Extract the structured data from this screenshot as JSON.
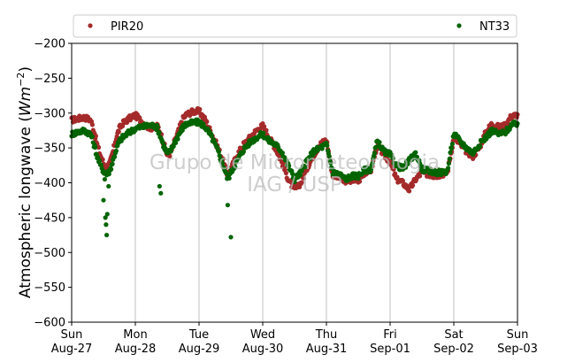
{
  "chart_data": {
    "type": "scatter",
    "ylabel_main": "Atmospheric longwave (",
    "ylabel_unit": "Wm",
    "ylabel_exp": "−2",
    "ylabel_close": ")",
    "ylim": [
      -600,
      -200
    ],
    "yticks": [
      -200,
      -250,
      -300,
      -350,
      -400,
      -450,
      -500,
      -550,
      -600
    ],
    "ytick_labels": [
      "−200",
      "−250",
      "−300",
      "−350",
      "−400",
      "−450",
      "−500",
      "−550",
      "−600"
    ],
    "xlim_days": [
      0,
      7
    ],
    "xticks": [
      {
        "day": "Sun",
        "date": "Aug-27"
      },
      {
        "day": "Mon",
        "date": "Aug-28"
      },
      {
        "day": "Tue",
        "date": "Aug-29"
      },
      {
        "day": "Wed",
        "date": "Aug-30"
      },
      {
        "day": "Thu",
        "date": "Aug-31"
      },
      {
        "day": "Fri",
        "date": "Sep-01"
      },
      {
        "day": "Sat",
        "date": "Sep-02"
      },
      {
        "day": "Sun",
        "date": "Sep-03"
      }
    ],
    "grid": "vertical",
    "legend_placement": "top",
    "watermark": [
      "Grupo de Micrometeorologia",
      "IAG / USP"
    ],
    "series": [
      {
        "name": "PIR20",
        "color": "#a52a2a",
        "x": [
          0.0,
          0.1,
          0.2,
          0.3,
          0.35,
          0.4,
          0.45,
          0.5,
          0.55,
          0.6,
          0.65,
          0.7,
          0.75,
          0.8,
          0.9,
          1.0,
          1.1,
          1.2,
          1.3,
          1.35,
          1.4,
          1.45,
          1.5,
          1.55,
          1.6,
          1.7,
          1.75,
          1.8,
          1.9,
          2.0,
          2.1,
          2.2,
          2.3,
          2.4,
          2.45,
          2.5,
          2.6,
          2.7,
          2.8,
          2.9,
          3.0,
          3.1,
          3.2,
          3.3,
          3.4,
          3.5,
          3.6,
          3.7,
          3.8,
          3.9,
          4.0,
          4.1,
          4.2,
          4.3,
          4.4,
          4.5,
          4.6,
          4.7,
          4.8,
          4.9,
          5.0,
          5.1,
          5.2,
          5.3,
          5.4,
          5.5,
          5.6,
          5.7,
          5.8,
          5.9,
          6.0,
          6.1,
          6.2,
          6.3,
          6.4,
          6.5,
          6.6,
          6.7,
          6.8,
          6.9,
          7.0
        ],
        "y": [
          -310,
          -308,
          -306,
          -310,
          -325,
          -345,
          -360,
          -372,
          -378,
          -372,
          -355,
          -335,
          -322,
          -315,
          -308,
          -303,
          -312,
          -320,
          -322,
          -318,
          -330,
          -345,
          -360,
          -358,
          -345,
          -320,
          -308,
          -302,
          -298,
          -297,
          -310,
          -330,
          -350,
          -375,
          -390,
          -380,
          -360,
          -345,
          -335,
          -325,
          -318,
          -335,
          -350,
          -370,
          -395,
          -410,
          -400,
          -378,
          -360,
          -345,
          -338,
          -390,
          -390,
          -400,
          -395,
          -398,
          -385,
          -382,
          -345,
          -360,
          -370,
          -395,
          -400,
          -410,
          -395,
          -385,
          -388,
          -390,
          -388,
          -385,
          -335,
          -345,
          -355,
          -362,
          -350,
          -328,
          -315,
          -320,
          -318,
          -305,
          -302
        ]
      },
      {
        "name": "NT33",
        "color": "#006400",
        "x": [
          0.0,
          0.1,
          0.2,
          0.3,
          0.35,
          0.4,
          0.45,
          0.5,
          0.55,
          0.6,
          0.65,
          0.7,
          0.75,
          0.8,
          0.9,
          1.0,
          1.1,
          1.2,
          1.3,
          1.35,
          1.4,
          1.45,
          1.5,
          1.55,
          1.6,
          1.7,
          1.75,
          1.8,
          1.9,
          2.0,
          2.1,
          2.2,
          2.3,
          2.4,
          2.45,
          2.5,
          2.6,
          2.7,
          2.8,
          2.9,
          3.0,
          3.1,
          3.2,
          3.3,
          3.4,
          3.5,
          3.6,
          3.7,
          3.8,
          3.9,
          4.0,
          4.1,
          4.2,
          4.3,
          4.4,
          4.5,
          4.6,
          4.7,
          4.8,
          4.9,
          5.0,
          5.1,
          5.2,
          5.3,
          5.4,
          5.5,
          5.6,
          5.7,
          5.8,
          5.9,
          6.0,
          6.1,
          6.2,
          6.3,
          6.4,
          6.5,
          6.6,
          6.7,
          6.8,
          6.9,
          7.0,
          0.52,
          0.53,
          0.55,
          0.56,
          0.58,
          1.38,
          1.4,
          2.45,
          2.5,
          0.54,
          0.5
        ],
        "y": [
          -330,
          -327,
          -325,
          -330,
          -345,
          -362,
          -375,
          -383,
          -388,
          -383,
          -368,
          -352,
          -340,
          -335,
          -328,
          -322,
          -320,
          -318,
          -318,
          -322,
          -335,
          -348,
          -358,
          -355,
          -345,
          -328,
          -320,
          -316,
          -314,
          -313,
          -320,
          -335,
          -355,
          -380,
          -395,
          -385,
          -368,
          -352,
          -342,
          -335,
          -330,
          -340,
          -345,
          -355,
          -375,
          -395,
          -385,
          -368,
          -355,
          -350,
          -345,
          -385,
          -387,
          -395,
          -390,
          -390,
          -382,
          -380,
          -340,
          -355,
          -360,
          -375,
          -380,
          -368,
          -358,
          -380,
          -383,
          -385,
          -385,
          -383,
          -330,
          -340,
          -350,
          -357,
          -345,
          -335,
          -325,
          -330,
          -328,
          -318,
          -315,
          -395,
          -450,
          -475,
          -445,
          -405,
          -405,
          -415,
          -432,
          -478,
          -460,
          -425
        ]
      }
    ]
  }
}
